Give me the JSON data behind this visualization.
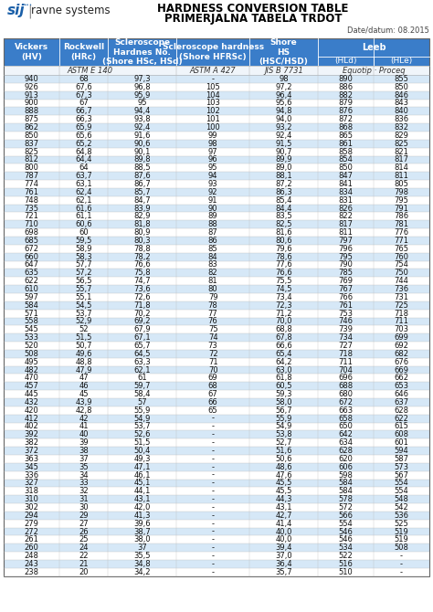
{
  "title1": "HARDNESS CONVERSION TABLE",
  "title2": "PRIMERJALNA TABELA TRDOT",
  "date": "Date/datum: 08.2015",
  "header_bg": "#3A7DC9",
  "header_text": "#FFFFFF",
  "row_odd_bg": "#D6E8F7",
  "row_even_bg": "#FFFFFF",
  "subheader_bg": "#F0F5FA",
  "col_widths_rel": [
    55,
    48,
    68,
    72,
    68,
    55,
    55
  ],
  "table_data": [
    [
      940,
      68,
      "97,3",
      "-",
      98,
      890,
      855
    ],
    [
      926,
      "67,6",
      "96,8",
      105,
      "97,2",
      886,
      850
    ],
    [
      913,
      "67,3",
      "95,9",
      104,
      "96,4",
      882,
      846
    ],
    [
      900,
      67,
      95,
      103,
      "95,6",
      879,
      843
    ],
    [
      888,
      "66,7",
      "94,4",
      102,
      "94,8",
      876,
      840
    ],
    [
      875,
      "66,3",
      "93,8",
      101,
      "94,0",
      872,
      836
    ],
    [
      862,
      "65,9",
      "92,4",
      100,
      "93,2",
      868,
      832
    ],
    [
      850,
      "65,6",
      "91,6",
      99,
      "92,4",
      865,
      829
    ],
    [
      837,
      "65,2",
      "90,6",
      98,
      "91,5",
      861,
      825
    ],
    [
      825,
      "64,8",
      "90,1",
      97,
      "90,7",
      858,
      821
    ],
    [
      812,
      "64,4",
      "89,8",
      96,
      "89,9",
      854,
      817
    ],
    [
      800,
      64,
      "88,5",
      95,
      "89,0",
      850,
      814
    ],
    [
      787,
      "63,7",
      "87,6",
      94,
      "88,1",
      847,
      811
    ],
    [
      774,
      "63,1",
      "86,7",
      93,
      "87,2",
      841,
      805
    ],
    [
      761,
      "62,4",
      "85,7",
      92,
      "86,3",
      834,
      798
    ],
    [
      748,
      "62,1",
      "84,7",
      91,
      "85,4",
      831,
      795
    ],
    [
      735,
      "61,6",
      "83,9",
      90,
      "84,4",
      826,
      791
    ],
    [
      721,
      "61,1",
      "82,9",
      89,
      "83,5",
      822,
      786
    ],
    [
      710,
      "60,6",
      "81,8",
      88,
      "82,5",
      817,
      781
    ],
    [
      698,
      60,
      "80,9",
      87,
      "81,6",
      811,
      776
    ],
    [
      685,
      "59,5",
      "80,3",
      86,
      "80,6",
      797,
      771
    ],
    [
      672,
      "58,9",
      "78,8",
      85,
      "79,6",
      796,
      765
    ],
    [
      660,
      "58,3",
      "78,2",
      84,
      "78,6",
      795,
      760
    ],
    [
      647,
      "57,7",
      "76,6",
      83,
      "77,6",
      790,
      754
    ],
    [
      635,
      "57,2",
      "75,8",
      82,
      "76,6",
      785,
      750
    ],
    [
      622,
      "56,5",
      "74,7",
      81,
      "75,5",
      769,
      744
    ],
    [
      610,
      "55,7",
      "73,6",
      80,
      "74,5",
      767,
      736
    ],
    [
      597,
      "55,1",
      "72,6",
      79,
      "73,4",
      766,
      731
    ],
    [
      584,
      "54,5",
      "71,8",
      78,
      "72,3",
      761,
      725
    ],
    [
      571,
      "53,7",
      "70,2",
      77,
      "71,2",
      753,
      718
    ],
    [
      558,
      "52,9",
      "69,2",
      76,
      "70,0",
      746,
      711
    ],
    [
      545,
      52,
      "67,9",
      75,
      "68,8",
      739,
      703
    ],
    [
      533,
      "51,5",
      "67,1",
      74,
      "67,8",
      734,
      699
    ],
    [
      520,
      "50,7",
      "65,7",
      73,
      "66,6",
      727,
      692
    ],
    [
      508,
      "49,6",
      "64,5",
      72,
      "65,4",
      718,
      682
    ],
    [
      495,
      "48,8",
      "63,3",
      71,
      "64,2",
      711,
      676
    ],
    [
      482,
      "47,9",
      "62,1",
      70,
      "63,0",
      704,
      669
    ],
    [
      470,
      47,
      61,
      69,
      "61,8",
      696,
      662
    ],
    [
      457,
      46,
      "59,7",
      68,
      "60,5",
      688,
      653
    ],
    [
      445,
      45,
      "58,4",
      67,
      "59,3",
      680,
      646
    ],
    [
      432,
      "43,9",
      57,
      66,
      "58,0",
      672,
      637
    ],
    [
      420,
      "42,8",
      "55,9",
      65,
      "56,7",
      663,
      628
    ],
    [
      412,
      42,
      "54,9",
      "-",
      "55,9",
      658,
      622
    ],
    [
      402,
      41,
      "53,7",
      "-",
      "54,9",
      650,
      615
    ],
    [
      392,
      40,
      "52,6",
      "-",
      "53,8",
      642,
      608
    ],
    [
      382,
      39,
      "51,5",
      "-",
      "52,7",
      634,
      601
    ],
    [
      372,
      38,
      "50,4",
      "-",
      "51,6",
      628,
      594
    ],
    [
      363,
      37,
      "49,3",
      "-",
      "50,6",
      620,
      587
    ],
    [
      345,
      35,
      "47,1",
      "-",
      "48,6",
      606,
      573
    ],
    [
      336,
      34,
      "46,1",
      "-",
      "47,6",
      598,
      567
    ],
    [
      327,
      33,
      "45,1",
      "-",
      "45,5",
      584,
      554
    ],
    [
      318,
      32,
      "44,1",
      "-",
      "45,5",
      584,
      554
    ],
    [
      310,
      31,
      "43,1",
      "-",
      "44,3",
      578,
      548
    ],
    [
      302,
      30,
      "42,0",
      "-",
      "43,1",
      572,
      542
    ],
    [
      294,
      29,
      "41,3",
      "-",
      "42,7",
      566,
      536
    ],
    [
      279,
      27,
      "39,6",
      "-",
      "41,4",
      554,
      525
    ],
    [
      272,
      26,
      "38,7",
      "-",
      "40,0",
      546,
      519
    ],
    [
      261,
      25,
      "38,0",
      "-",
      "40,0",
      546,
      519
    ],
    [
      260,
      24,
      37,
      "-",
      "39,4",
      534,
      508
    ],
    [
      248,
      22,
      "35,5",
      "-",
      "37,0",
      522,
      "-"
    ],
    [
      243,
      21,
      "34,8",
      "-",
      "36,4",
      516,
      "-"
    ],
    [
      238,
      20,
      "34,2",
      "-",
      "35,7",
      510,
      "-"
    ]
  ]
}
